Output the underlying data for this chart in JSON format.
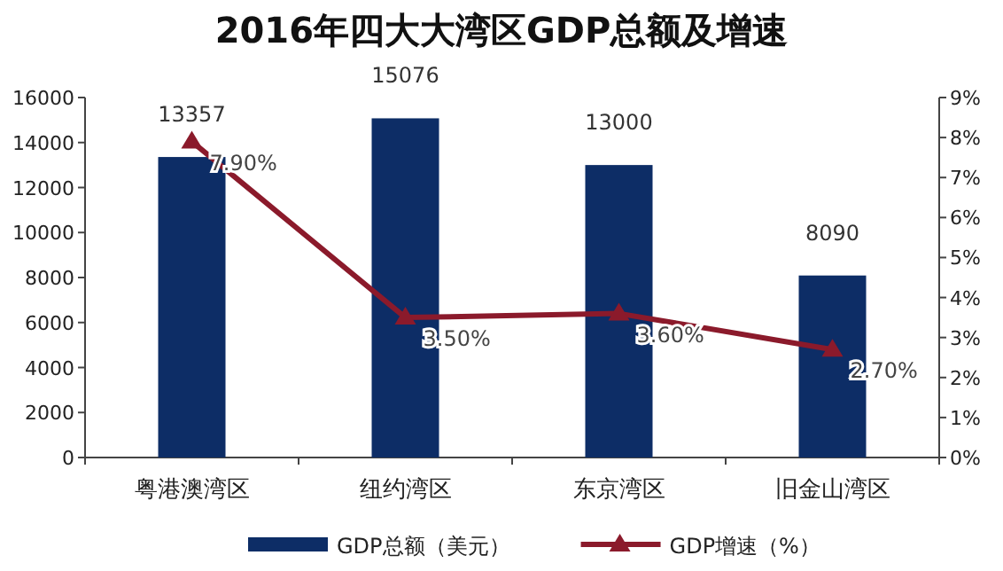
{
  "chart_data": {
    "type": "bar",
    "title": "2016年四大大湾区GDP总额及增速",
    "categories": [
      "粤港澳湾区",
      "纽约湾区",
      "东京湾区",
      "旧金山湾区"
    ],
    "series": [
      {
        "name": "GDP总额（美元）",
        "color": "#0d2d66",
        "values": [
          13357,
          15076,
          13000,
          8090
        ],
        "value_labels": [
          "13357",
          "15076",
          "13000",
          "8090"
        ]
      },
      {
        "name": "GDP增速（%）",
        "type": "line",
        "axis": "y2",
        "color": "#8b1a2b",
        "marker": "triangle",
        "values": [
          7.9,
          3.5,
          3.6,
          2.7
        ],
        "value_labels": [
          "7.90%",
          "3.50%",
          "3.60%",
          "2.70%"
        ]
      }
    ],
    "ylim": [
      0,
      16000
    ],
    "yticks": [
      0,
      2000,
      4000,
      6000,
      8000,
      10000,
      12000,
      14000,
      16000
    ],
    "y2lim": [
      0,
      9
    ],
    "y2ticks": [
      {
        "value": 0,
        "label": "0%"
      },
      {
        "value": 1,
        "label": "1%"
      },
      {
        "value": 2,
        "label": "2%"
      },
      {
        "value": 3,
        "label": "3%"
      },
      {
        "value": 4,
        "label": "4%"
      },
      {
        "value": 5,
        "label": "5%"
      },
      {
        "value": 6,
        "label": "6%"
      },
      {
        "value": 7,
        "label": "7%"
      },
      {
        "value": 8,
        "label": "8%"
      },
      {
        "value": 9,
        "label": "9%"
      }
    ],
    "grid": false,
    "legend": "bottom"
  }
}
